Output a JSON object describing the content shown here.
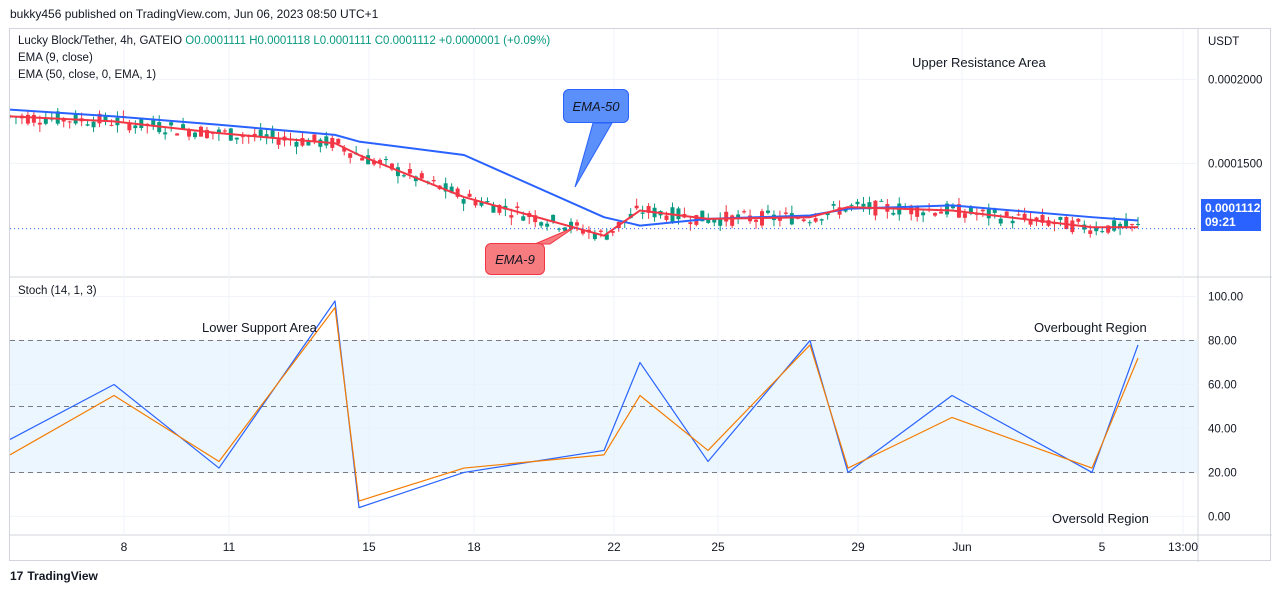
{
  "header": {
    "published": "bukky456 published on TradingView.com, Jun 06, 2023 08:50 UTC+1"
  },
  "legend": {
    "symbol": "Lucky Block/Tether, 4h, GATEIO",
    "ohlc": "O0.0001111 H0.0001118 L0.0001111 C0.0001112 +0.0000001 (+0.09%)",
    "ema9": "EMA (9, close)",
    "ema50": "EMA (50, close, 0, EMA, 1)",
    "stoch": "Stoch (14, 1, 3)"
  },
  "price_axis": {
    "unit": "USDT",
    "ticks": [
      "0.0002000",
      "0.0001500"
    ],
    "last_price": "0.0001112",
    "countdown": "09:21"
  },
  "stoch_axis": {
    "ticks": [
      "100.00",
      "80.00",
      "60.00",
      "40.00",
      "20.00",
      "0.00"
    ]
  },
  "time_axis": {
    "ticks": [
      "8",
      "11",
      "15",
      "18",
      "22",
      "25",
      "29",
      "Jun",
      "5",
      "13:00"
    ]
  },
  "annotations": {
    "ema50_callout": "EMA-50",
    "ema9_callout": "EMA-9",
    "upper_resistance": "Upper Resistance Area",
    "lower_support": "Lower Support Area",
    "overbought": "Overbought Region",
    "oversold": "Oversold Region"
  },
  "footer": {
    "brand": "TradingView"
  },
  "colors": {
    "ema9": "#f23645",
    "ema50": "#2962ff",
    "up": "#089981",
    "down": "#f23645",
    "stoch_k": "#2962ff",
    "stoch_d": "#f57c00",
    "band": "#e3f2fd"
  },
  "chart_data": [
    {
      "type": "line",
      "title": "Lucky Block/Tether, 4h, GATEIO",
      "ylabel": "USDT",
      "ylim": [
        8.3e-05,
        0.00023
      ],
      "x": [
        "May 6",
        "May 8",
        "May 11",
        "May 14",
        "May 15",
        "May 18",
        "May 22",
        "May 23",
        "May 25",
        "May 28",
        "May 29",
        "Jun 1",
        "Jun 5",
        "Jun 6"
      ],
      "series": [
        {
          "name": "EMA (50, close, 0, EMA, 1)",
          "values": [
            0.000182,
            0.000178,
            0.000173,
            0.000167,
            0.000163,
            0.000155,
            0.000118,
            0.000113,
            0.000117,
            0.000119,
            0.000123,
            0.000125,
            0.000118,
            0.000116
          ]
        },
        {
          "name": "EMA (9, close)",
          "values": [
            0.000178,
            0.000175,
            0.000168,
            0.000162,
            0.000155,
            0.00013,
            0.000107,
            0.000122,
            0.000117,
            0.000118,
            0.000124,
            0.000122,
            0.000112,
            0.000112
          ]
        }
      ],
      "last_close": 0.0001112
    },
    {
      "type": "line",
      "title": "Stoch (14, 1, 3)",
      "ylim": [
        -8,
        108
      ],
      "bands": [
        20,
        50,
        80
      ],
      "x": [
        "May 6",
        "May 8",
        "May 11",
        "May 14",
        "May 15",
        "May 18",
        "May 22",
        "May 23",
        "May 25",
        "May 28",
        "May 29",
        "Jun 1",
        "Jun 5",
        "Jun 6"
      ],
      "series": [
        {
          "name": "%K",
          "values": [
            35,
            60,
            22,
            98,
            4,
            20,
            30,
            70,
            25,
            80,
            20,
            55,
            20,
            78
          ]
        },
        {
          "name": "%D",
          "values": [
            28,
            55,
            25,
            95,
            7,
            22,
            28,
            55,
            30,
            78,
            22,
            45,
            22,
            72
          ]
        }
      ]
    }
  ]
}
